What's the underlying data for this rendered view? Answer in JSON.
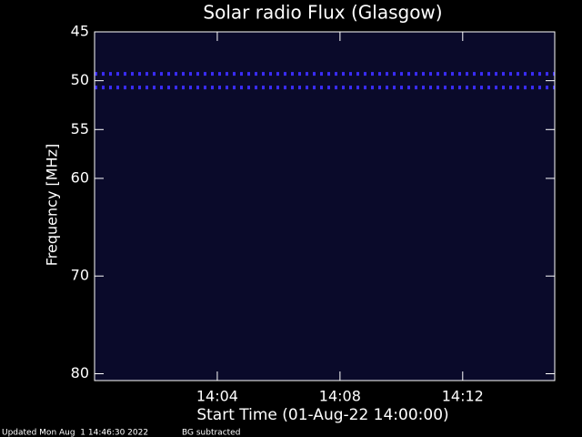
{
  "chart_data": {
    "type": "spectrogram",
    "title": "Solar radio Flux (Glasgow)",
    "y_label": "Frequency [MHz]",
    "x_label": "Start Time (01-Aug-22 14:00:00)",
    "xlim": [
      0,
      15
    ],
    "xticks": [
      {
        "value": 4,
        "label": "14:04"
      },
      {
        "value": 8,
        "label": "14:08"
      },
      {
        "value": 12,
        "label": "14:12"
      }
    ],
    "ylim": [
      45,
      80.7
    ],
    "yticks": [
      45,
      50,
      55,
      60,
      70,
      80
    ],
    "emission_lines": [
      49.3,
      50.7
    ],
    "background_color": "#0a0a2a",
    "line_color": "#3a2cff",
    "footer": [
      "Updated Mon Aug  1 14:46:30 2022",
      "BG subtracted"
    ]
  }
}
